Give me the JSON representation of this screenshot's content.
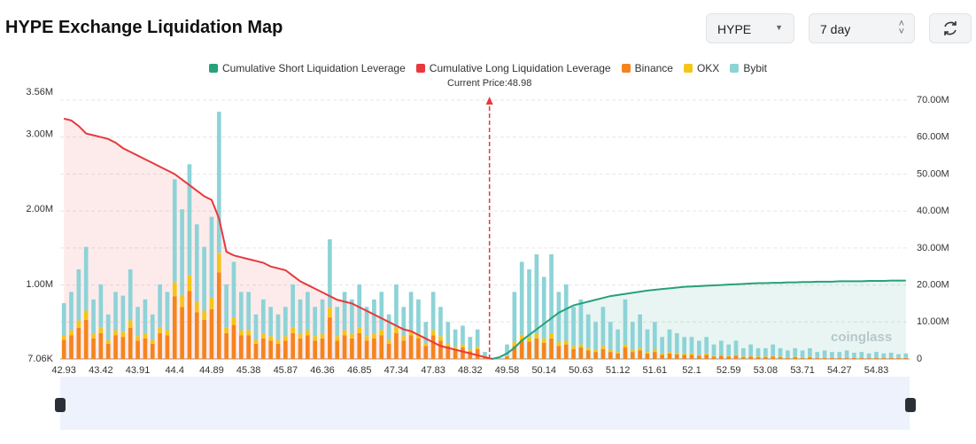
{
  "header": {
    "title": "HYPE Exchange Liquidation Map",
    "symbol_select": "HYPE",
    "range_select": "7 day"
  },
  "chart_data": {
    "type": "bar",
    "stacked": true,
    "categories": [
      "42.93",
      null,
      null,
      null,
      null,
      "43.42",
      null,
      null,
      null,
      null,
      "43.91",
      null,
      null,
      null,
      null,
      "44.4",
      null,
      null,
      null,
      null,
      "44.89",
      null,
      null,
      null,
      null,
      "45.38",
      null,
      null,
      null,
      null,
      "45.87",
      null,
      null,
      null,
      null,
      "46.36",
      null,
      null,
      null,
      null,
      "46.85",
      null,
      null,
      null,
      null,
      "47.34",
      null,
      null,
      null,
      null,
      "47.83",
      null,
      null,
      null,
      null,
      "48.32",
      null,
      null,
      null,
      null,
      "49.58",
      null,
      null,
      null,
      null,
      "50.14",
      null,
      null,
      null,
      null,
      "50.63",
      null,
      null,
      null,
      null,
      "51.12",
      null,
      null,
      null,
      null,
      "51.61",
      null,
      null,
      null,
      null,
      "52.1",
      null,
      null,
      null,
      null,
      "52.59",
      null,
      null,
      null,
      null,
      "53.08",
      null,
      null,
      null,
      null,
      "53.71",
      null,
      null,
      null,
      null,
      "54.27",
      null,
      null,
      null,
      null,
      "54.83",
      null,
      null,
      null,
      null
    ],
    "series": [
      {
        "name": "Cumulative Short Liquidation Leverage",
        "type": "line",
        "axis": "y2",
        "color": "#26a17b",
        "values": [
          null,
          null,
          null,
          null,
          null,
          null,
          null,
          null,
          null,
          null,
          null,
          null,
          null,
          null,
          null,
          null,
          null,
          null,
          null,
          null,
          null,
          null,
          null,
          null,
          null,
          null,
          null,
          null,
          null,
          null,
          null,
          null,
          null,
          null,
          null,
          null,
          null,
          null,
          null,
          null,
          null,
          null,
          null,
          null,
          null,
          null,
          null,
          null,
          null,
          null,
          null,
          null,
          null,
          null,
          null,
          null,
          null,
          null,
          0,
          500000,
          1500000,
          3000000,
          5000000,
          6500000,
          8000000,
          9500000,
          11000000,
          12500000,
          13500000,
          14500000,
          15000000,
          15500000,
          16000000,
          16500000,
          17000000,
          17300000,
          17600000,
          17900000,
          18200000,
          18500000,
          18700000,
          18900000,
          19100000,
          19300000,
          19500000,
          19600000,
          19700000,
          19800000,
          19900000,
          20000000,
          20100000,
          20200000,
          20300000,
          20400000,
          20500000,
          20500000,
          20600000,
          20600000,
          20700000,
          20700000,
          20800000,
          20800000,
          20900000,
          20900000,
          20900000,
          21000000,
          21000000,
          21000000,
          21000000,
          21100000,
          21100000,
          21100000,
          21200000,
          21200000,
          21200000
        ]
      },
      {
        "name": "Cumulative Long Liquidation Leverage",
        "type": "line",
        "axis": "y2",
        "color": "#e8383d",
        "values": [
          65000000,
          64500000,
          63000000,
          61000000,
          60500000,
          60000000,
          59500000,
          58500000,
          57000000,
          56000000,
          55000000,
          54000000,
          53000000,
          52000000,
          51000000,
          50000000,
          48500000,
          47000000,
          45500000,
          44000000,
          43000000,
          38000000,
          29000000,
          28000000,
          27500000,
          27000000,
          26500000,
          26000000,
          25000000,
          24500000,
          24000000,
          22500000,
          21000000,
          20000000,
          19000000,
          18000000,
          17000000,
          16000000,
          15500000,
          15000000,
          14000000,
          13000000,
          12000000,
          11000000,
          10000000,
          9000000,
          8000000,
          7500000,
          6500000,
          5500000,
          4500000,
          3500000,
          3000000,
          2500000,
          2000000,
          1500000,
          1000000,
          500000,
          0,
          null,
          null,
          null,
          null,
          null,
          null,
          null,
          null,
          null,
          null,
          null,
          null,
          null,
          null,
          null,
          null,
          null,
          null,
          null,
          null,
          null,
          null,
          null,
          null,
          null,
          null,
          null,
          null,
          null,
          null,
          null,
          null,
          null,
          null,
          null,
          null,
          null,
          null,
          null,
          null,
          null,
          null,
          null,
          null,
          null,
          null,
          null,
          null,
          null,
          null,
          null,
          null,
          null,
          null,
          null,
          null
        ]
      },
      {
        "name": "Binance",
        "type": "bar",
        "color": "#f5841f",
        "values": [
          260000,
          320000,
          420000,
          530000,
          280000,
          350000,
          210000,
          320000,
          300000,
          420000,
          250000,
          280000,
          210000,
          350000,
          320000,
          840000,
          700000,
          910000,
          630000,
          530000,
          670000,
          1160000,
          350000,
          460000,
          320000,
          320000,
          210000,
          280000,
          250000,
          210000,
          250000,
          350000,
          280000,
          320000,
          250000,
          280000,
          560000,
          250000,
          320000,
          280000,
          350000,
          250000,
          280000,
          320000,
          210000,
          350000,
          250000,
          320000,
          280000,
          180000,
          320000,
          250000,
          180000,
          140000,
          160000,
          110000,
          140000,
          40000,
          0,
          0,
          40000,
          180000,
          260000,
          240000,
          280000,
          220000,
          280000,
          180000,
          200000,
          140000,
          160000,
          120000,
          100000,
          140000,
          100000,
          80000,
          160000,
          100000,
          120000,
          80000,
          100000,
          60000,
          80000,
          70000,
          60000,
          60000,
          50000,
          60000,
          40000,
          50000,
          40000,
          50000,
          30000,
          40000,
          30000,
          30000,
          40000,
          30000,
          20000,
          30000,
          20000,
          30000,
          20000,
          20000,
          20000,
          20000,
          20000,
          20000,
          20000,
          20000,
          20000,
          20000,
          20000,
          20000,
          20000
        ]
      },
      {
        "name": "OKX",
        "type": "bar",
        "color": "#f5c518",
        "values": [
          60000,
          70000,
          100000,
          120000,
          60000,
          80000,
          50000,
          70000,
          70000,
          100000,
          60000,
          60000,
          50000,
          80000,
          70000,
          190000,
          160000,
          210000,
          140000,
          120000,
          150000,
          260000,
          80000,
          100000,
          70000,
          70000,
          50000,
          60000,
          60000,
          50000,
          60000,
          80000,
          60000,
          70000,
          60000,
          60000,
          130000,
          60000,
          70000,
          60000,
          80000,
          60000,
          60000,
          70000,
          50000,
          80000,
          60000,
          70000,
          60000,
          40000,
          70000,
          60000,
          40000,
          30000,
          40000,
          20000,
          30000,
          10000,
          0,
          0,
          10000,
          50000,
          70000,
          60000,
          70000,
          60000,
          70000,
          50000,
          50000,
          40000,
          40000,
          30000,
          30000,
          40000,
          30000,
          20000,
          40000,
          30000,
          30000,
          20000,
          30000,
          20000,
          20000,
          20000,
          20000,
          20000,
          10000,
          20000,
          10000,
          10000,
          10000,
          10000,
          10000,
          10000,
          10000,
          10000,
          10000,
          10000,
          10000,
          10000,
          10000,
          10000,
          10000,
          10000,
          10000,
          10000,
          10000,
          10000,
          10000,
          10000,
          10000,
          10000,
          10000,
          10000,
          10000
        ]
      },
      {
        "name": "Bybit",
        "type": "bar",
        "color": "#8dd3d7",
        "values": [
          430000,
          510000,
          680000,
          850000,
          460000,
          570000,
          340000,
          510000,
          480000,
          680000,
          390000,
          460000,
          340000,
          570000,
          510000,
          1370000,
          1140000,
          1480000,
          1030000,
          850000,
          1080000,
          1880000,
          570000,
          740000,
          510000,
          510000,
          340000,
          460000,
          390000,
          340000,
          390000,
          570000,
          460000,
          510000,
          390000,
          460000,
          910000,
          390000,
          510000,
          460000,
          570000,
          390000,
          460000,
          510000,
          340000,
          570000,
          390000,
          510000,
          460000,
          280000,
          510000,
          390000,
          280000,
          230000,
          250000,
          170000,
          230000,
          50000,
          0,
          0,
          150000,
          670000,
          970000,
          900000,
          1050000,
          820000,
          1050000,
          670000,
          750000,
          520000,
          600000,
          450000,
          370000,
          520000,
          370000,
          300000,
          600000,
          370000,
          450000,
          300000,
          370000,
          220000,
          300000,
          260000,
          220000,
          220000,
          190000,
          220000,
          150000,
          190000,
          150000,
          190000,
          110000,
          150000,
          110000,
          110000,
          150000,
          110000,
          90000,
          110000,
          90000,
          110000,
          70000,
          90000,
          70000,
          70000,
          90000,
          60000,
          70000,
          50000,
          70000,
          50000,
          60000,
          40000,
          50000
        ]
      }
    ],
    "ylim": [
      7060,
      3560000
    ],
    "yticks": [
      {
        "value": 7060,
        "label": "7.06K"
      },
      {
        "value": 1000000,
        "label": "1.00M"
      },
      {
        "value": 2000000,
        "label": "2.00M"
      },
      {
        "value": 3000000,
        "label": "3.00M"
      },
      {
        "value": 3560000,
        "label": "3.56M"
      }
    ],
    "y2lim": [
      0,
      70000000
    ],
    "y2ticks": [
      0,
      {
        "value": 10000000,
        "label": "10.00M"
      },
      {
        "value": 20000000,
        "label": "20.00M"
      },
      {
        "value": 30000000,
        "label": "30.00M"
      },
      {
        "value": 40000000,
        "label": "40.00M"
      },
      {
        "value": 50000000,
        "label": "50.00M"
      },
      {
        "value": 60000000,
        "label": "60.00M"
      },
      {
        "value": 70000000,
        "label": "70.00M"
      }
    ],
    "grid": true,
    "annotations": [
      {
        "text": "Current Price:48.98",
        "x": 48.98
      }
    ],
    "watermark": "coinglass"
  }
}
